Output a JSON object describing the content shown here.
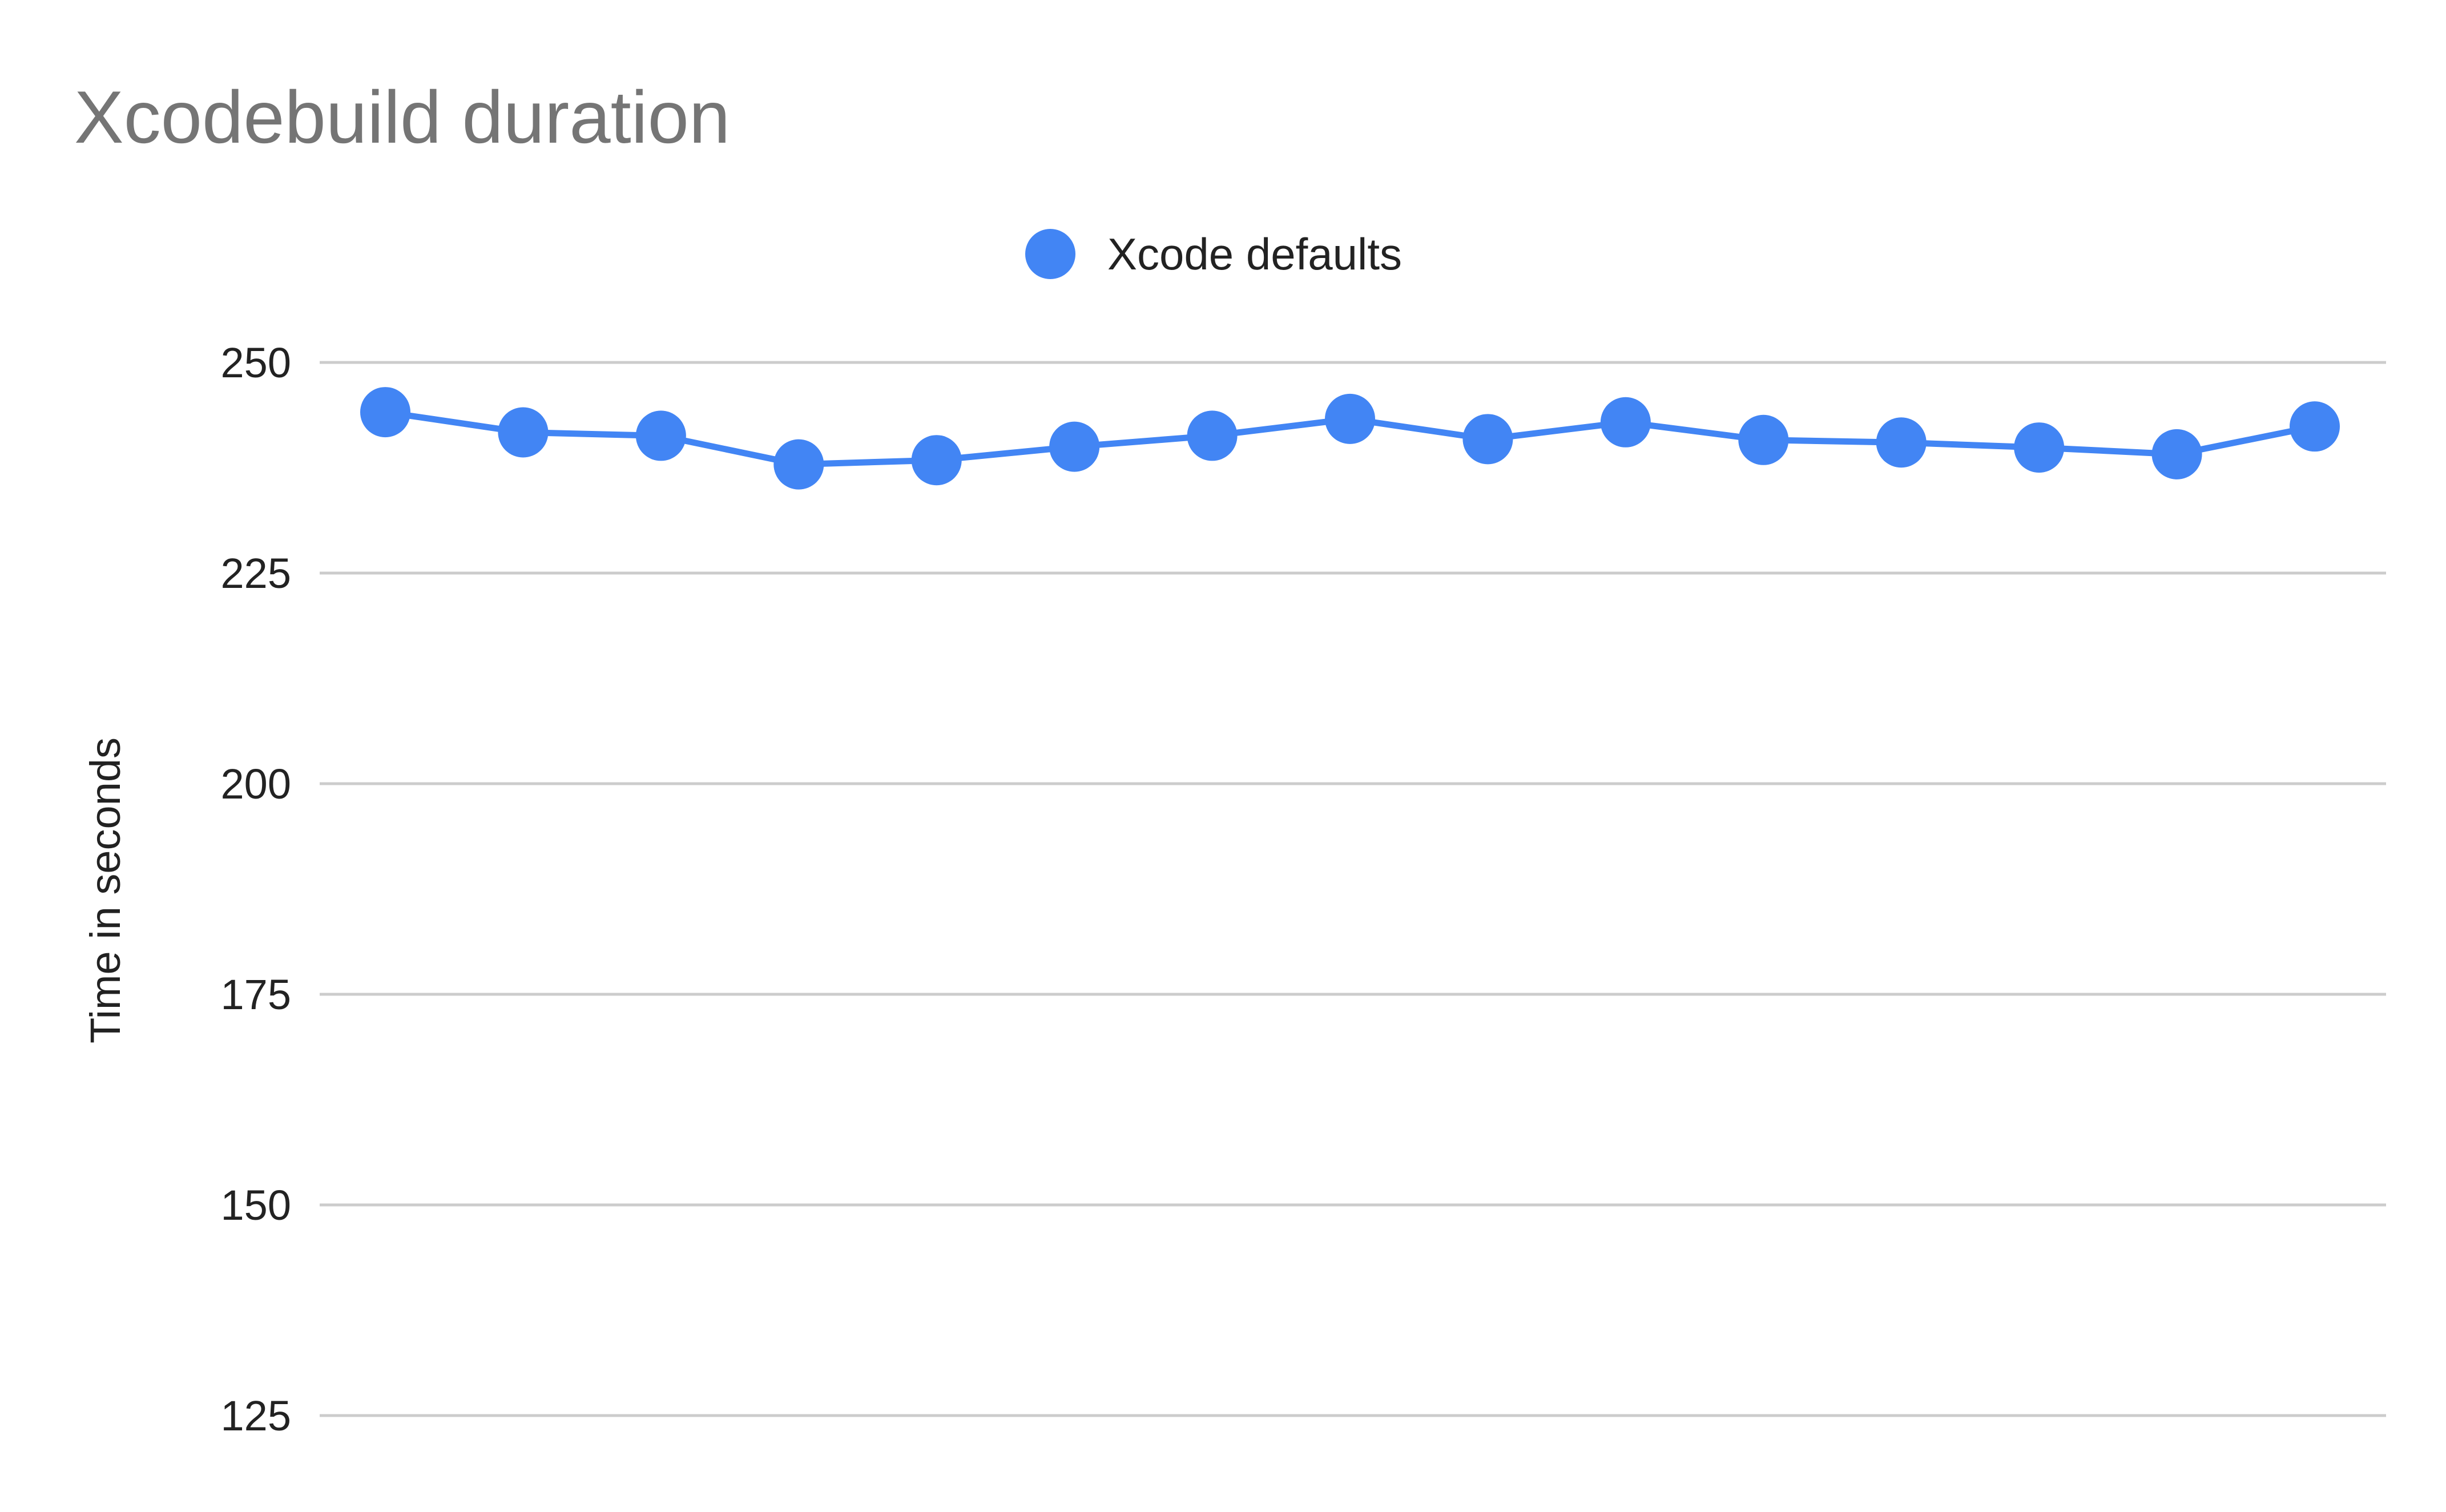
{
  "chart_data": {
    "type": "line",
    "title": "Xcodebuild duration",
    "xlabel": "",
    "ylabel": "Time in seconds",
    "ylim": [
      125,
      250
    ],
    "yticks": [
      125,
      150,
      175,
      200,
      225,
      250
    ],
    "grid": true,
    "legend_position": "top-center",
    "x": [
      1,
      2,
      3,
      4,
      5,
      6,
      7,
      8,
      9,
      10,
      11,
      12,
      13,
      14,
      15
    ],
    "series": [
      {
        "name": "Xcode defaults",
        "color": "#4285F4",
        "values": [
          244.1,
          241.7,
          241.3,
          237.9,
          238.4,
          240.0,
          241.3,
          243.3,
          240.9,
          242.9,
          240.8,
          240.5,
          239.9,
          239.1,
          242.4
        ]
      }
    ]
  }
}
